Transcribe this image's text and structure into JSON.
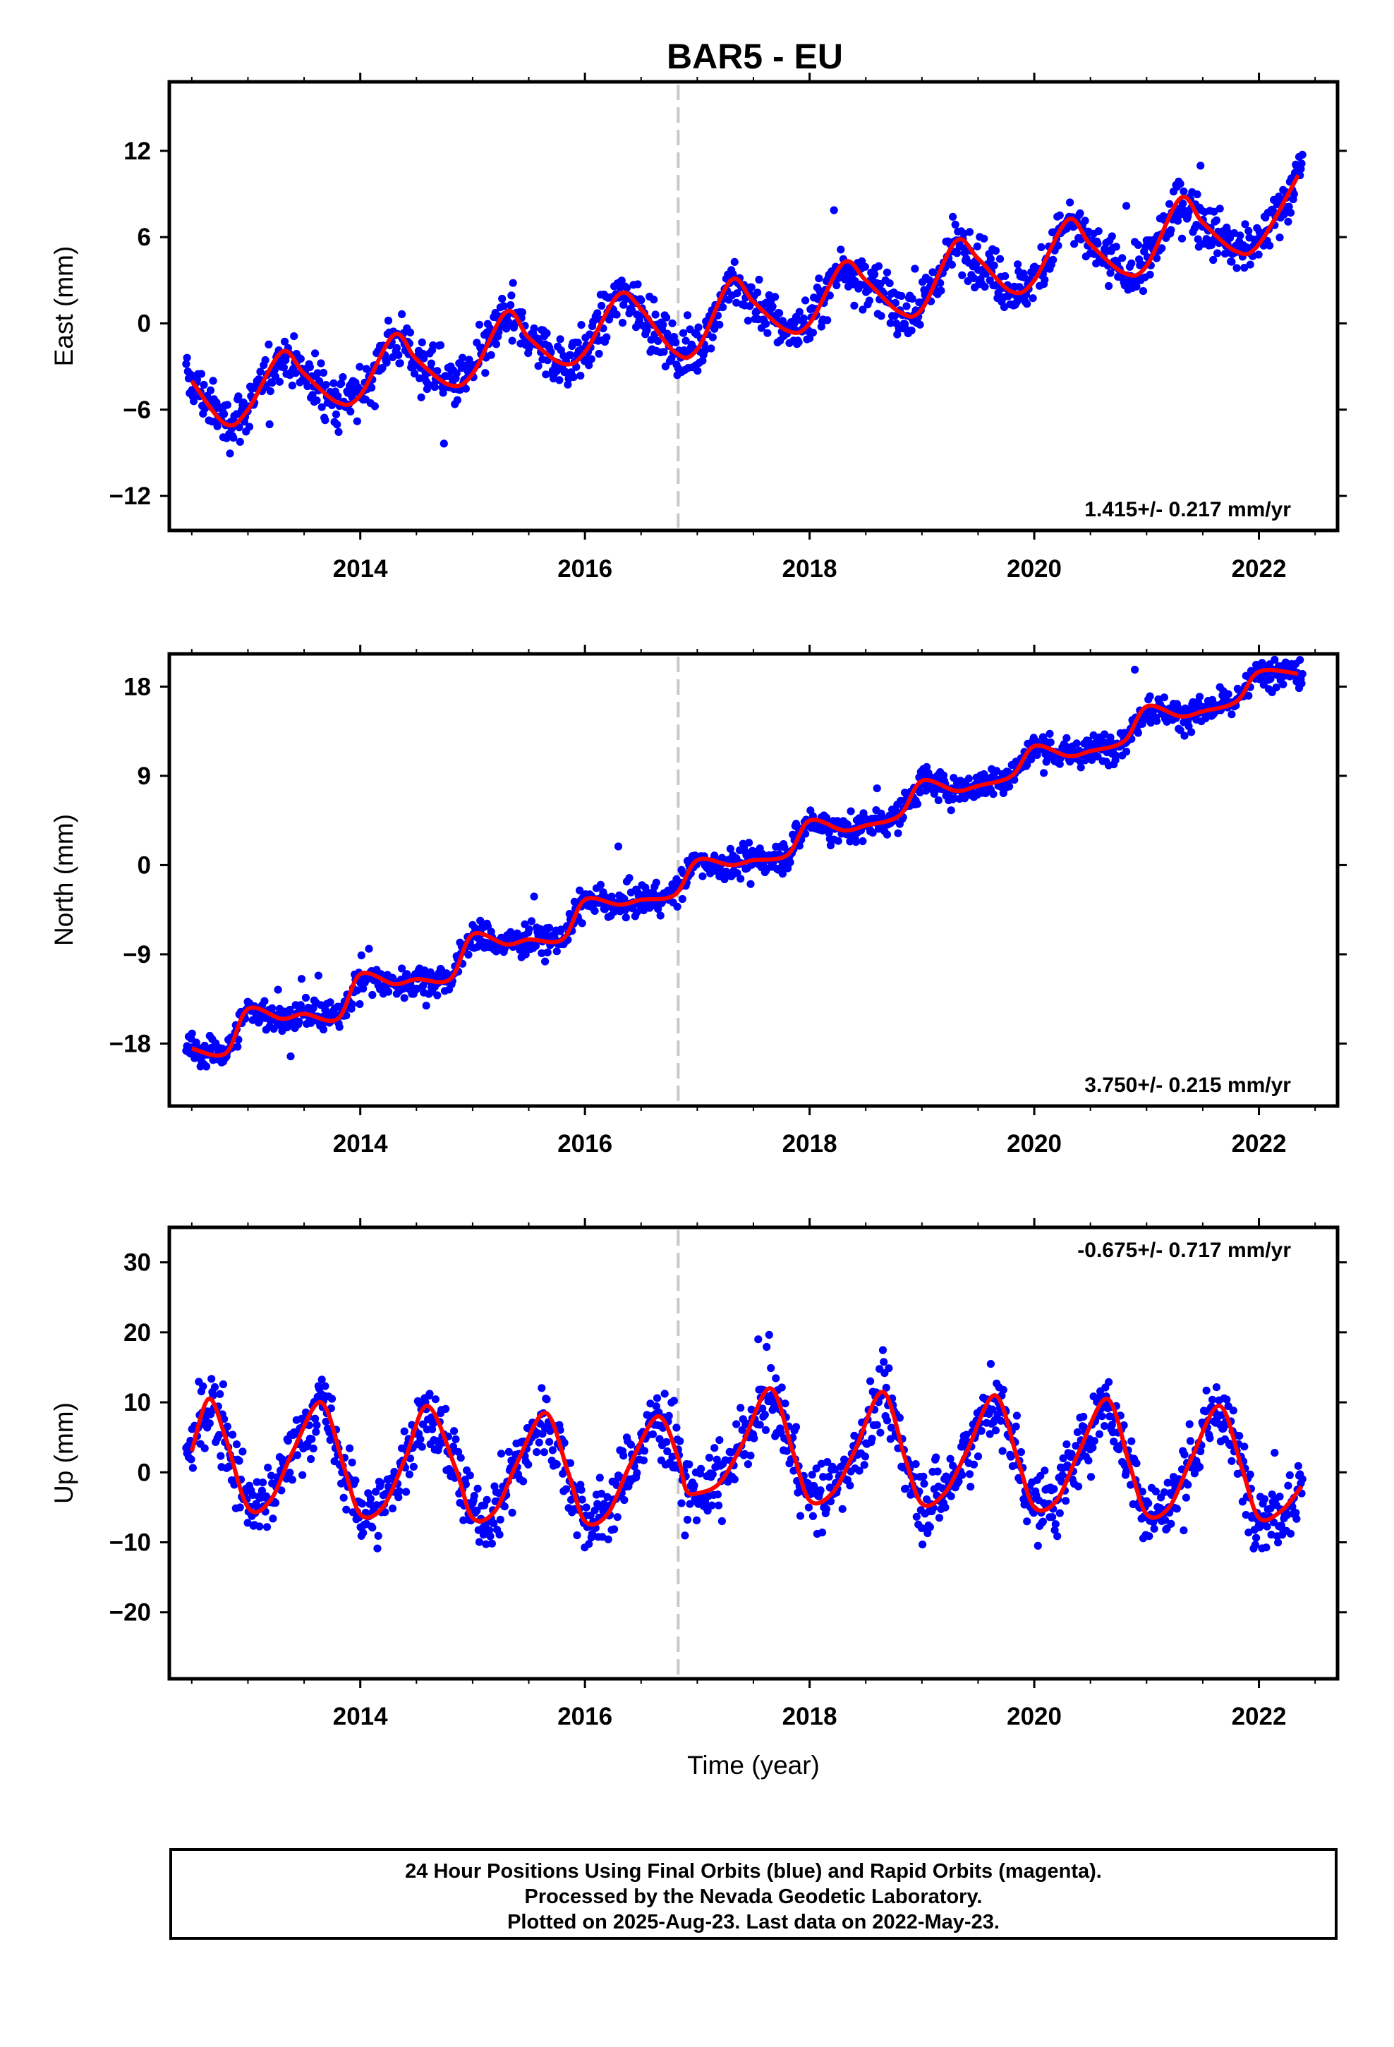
{
  "title": "BAR5 - EU",
  "x_axis": {
    "label": "Time (year)",
    "range": [
      2012.3,
      2022.7
    ],
    "ticks": [
      2014,
      2016,
      2018,
      2020,
      2022
    ],
    "tick_labels": [
      "2014",
      "2016",
      "2018",
      "2020",
      "2022"
    ],
    "minor_ticks": [
      2012.5,
      2013,
      2013.5,
      2014.5,
      2015,
      2015.5,
      2016.5,
      2017,
      2017.5,
      2018.5,
      2019,
      2019.5,
      2020.5,
      2021,
      2021.5,
      2022.5
    ]
  },
  "event_line": {
    "x": 2016.83,
    "color": "#c8c8c8"
  },
  "colors": {
    "points": "#0000ff",
    "model": "#ff0000",
    "frame": "#000000"
  },
  "footer": {
    "line1": "24 Hour Positions Using Final Orbits (blue) and Rapid Orbits (magenta).",
    "line2": "Processed by the Nevada Geodetic Laboratory.",
    "line3": "Plotted on 2025-Aug-23. Last data on 2022-May-23."
  },
  "chart_data": [
    {
      "type": "scatter",
      "component": "East",
      "ylabel": "East (mm)",
      "ylim": [
        -14.4,
        16.8
      ],
      "yticks": [
        -12,
        -6,
        0,
        6,
        12
      ],
      "ytick_labels": [
        "−12",
        "−6",
        "0",
        "6",
        "12"
      ],
      "rate_label": "1.415+/- 0.217 mm/yr",
      "rate_position": "bottom-right",
      "model_curve": {
        "x": [
          2012.5,
          2012.8,
          2013.0,
          2013.3,
          2013.5,
          2013.8,
          2014.0,
          2014.3,
          2014.5,
          2014.8,
          2015.0,
          2015.3,
          2015.5,
          2015.8,
          2016.0,
          2016.3,
          2016.5,
          2016.8,
          2017.0,
          2017.3,
          2017.5,
          2017.8,
          2018.0,
          2018.3,
          2018.5,
          2018.8,
          2019.0,
          2019.3,
          2019.5,
          2019.8,
          2020.0,
          2020.3,
          2020.5,
          2020.8,
          2021.0,
          2021.3,
          2021.5,
          2021.8,
          2022.0,
          2022.35
        ],
        "y": [
          -4.0,
          -7.0,
          -6.0,
          -2.0,
          -3.5,
          -5.5,
          -5.0,
          -0.8,
          -2.5,
          -4.3,
          -3.5,
          0.8,
          -1.0,
          -2.8,
          -2.0,
          2.0,
          1.0,
          -2.0,
          -1.8,
          3.0,
          1.5,
          -0.5,
          0.0,
          4.2,
          3.0,
          0.8,
          1.0,
          5.7,
          4.5,
          2.2,
          3.0,
          7.2,
          5.5,
          3.5,
          4.0,
          8.7,
          7.0,
          5.0,
          5.5,
          10.3
        ]
      }
    },
    {
      "type": "scatter",
      "component": "North",
      "ylabel": "North (mm)",
      "ylim": [
        -24.3,
        21.3
      ],
      "yticks": [
        -18,
        -9,
        0,
        9,
        18
      ],
      "ytick_labels": [
        "−18",
        "−9",
        "0",
        "9",
        "18"
      ],
      "rate_label": "3.750+/- 0.215 mm/yr",
      "rate_position": "bottom-right",
      "model_curve": {
        "x": [
          2012.5,
          2012.8,
          2013.0,
          2013.3,
          2013.5,
          2013.8,
          2014.0,
          2014.3,
          2014.5,
          2014.8,
          2015.0,
          2015.3,
          2015.5,
          2015.8,
          2016.0,
          2016.3,
          2016.5,
          2016.8,
          2017.0,
          2017.3,
          2017.5,
          2017.8,
          2018.0,
          2018.3,
          2018.5,
          2018.8,
          2019.0,
          2019.3,
          2019.5,
          2019.8,
          2020.0,
          2020.3,
          2020.5,
          2020.8,
          2021.0,
          2021.3,
          2021.5,
          2021.8,
          2022.0,
          2022.35
        ],
        "y": [
          -18.5,
          -19.0,
          -14.5,
          -15.5,
          -15.0,
          -15.5,
          -11.0,
          -12.0,
          -11.5,
          -11.5,
          -7.0,
          -8.0,
          -7.5,
          -7.5,
          -3.5,
          -4.0,
          -3.5,
          -3.0,
          0.5,
          0.0,
          0.5,
          1.0,
          4.5,
          3.5,
          4.0,
          5.0,
          8.5,
          7.5,
          8.0,
          9.0,
          12.0,
          11.0,
          11.5,
          12.5,
          16.0,
          15.0,
          15.5,
          16.5,
          19.5,
          19.3
        ]
      }
    },
    {
      "type": "scatter",
      "component": "Up",
      "ylabel": "Up (mm)",
      "ylim": [
        -29.5,
        35.0
      ],
      "yticks": [
        -20,
        -10,
        0,
        10,
        20,
        30
      ],
      "ytick_labels": [
        "−20",
        "−10",
        "0",
        "10",
        "20",
        "30"
      ],
      "rate_label": "-0.675+/- 0.717 mm/yr",
      "rate_position": "top-right",
      "model_curve": {
        "x": [
          2012.5,
          2012.65,
          2012.8,
          2013.0,
          2013.2,
          2013.4,
          2013.65,
          2013.85,
          2014.0,
          2014.2,
          2014.4,
          2014.6,
          2014.85,
          2015.0,
          2015.2,
          2015.4,
          2015.65,
          2015.85,
          2016.0,
          2016.2,
          2016.4,
          2016.65,
          2016.83,
          2016.9,
          2017.0,
          2017.2,
          2017.4,
          2017.65,
          2017.85,
          2018.0,
          2018.2,
          2018.4,
          2018.65,
          2018.85,
          2019.0,
          2019.2,
          2019.4,
          2019.65,
          2019.85,
          2020.0,
          2020.2,
          2020.4,
          2020.65,
          2020.85,
          2021.0,
          2021.2,
          2021.4,
          2021.65,
          2021.85,
          2022.0,
          2022.2,
          2022.38
        ],
        "y": [
          3.0,
          10.5,
          5.0,
          -5.0,
          -4.0,
          3.0,
          10.0,
          1.0,
          -6.0,
          -5.0,
          2.0,
          9.5,
          0.5,
          -6.5,
          -5.5,
          1.5,
          8.5,
          0.0,
          -7.0,
          -6.0,
          1.0,
          8.0,
          2.0,
          -2.5,
          -3.0,
          -1.5,
          4.0,
          12.0,
          3.0,
          -4.0,
          -3.0,
          3.0,
          11.5,
          2.0,
          -4.5,
          -3.0,
          3.0,
          11.0,
          2.0,
          -5.0,
          -4.0,
          3.0,
          10.5,
          1.0,
          -6.0,
          -5.0,
          2.0,
          9.5,
          0.5,
          -6.5,
          -5.5,
          -2.0
        ]
      }
    }
  ]
}
